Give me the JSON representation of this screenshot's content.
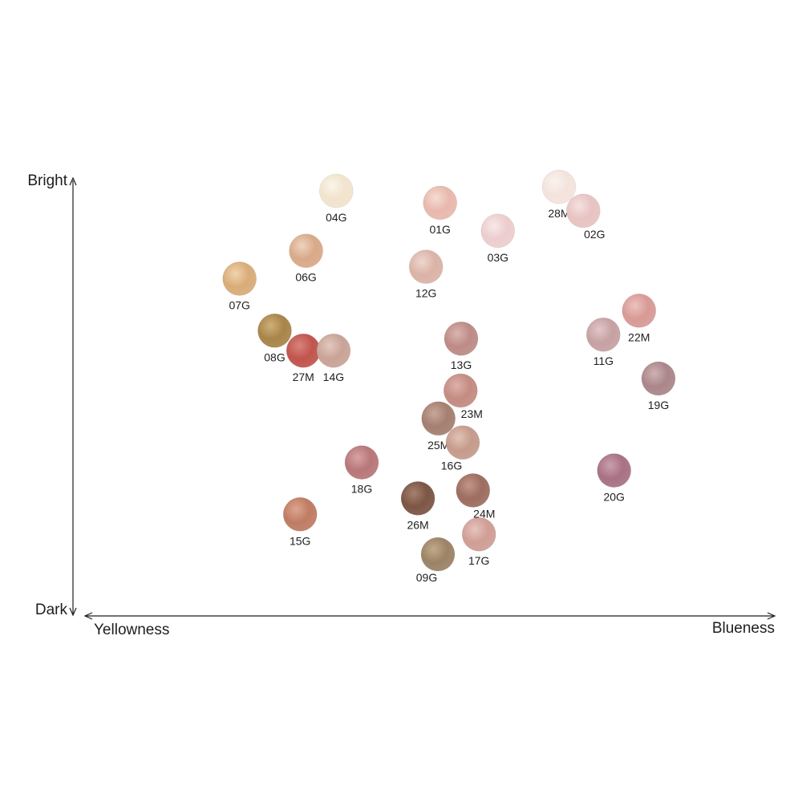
{
  "chart_data": {
    "type": "scatter",
    "xlabel_left": "Yellowness",
    "xlabel_right": "Blueness",
    "ylabel_top": "Bright",
    "ylabel_bottom": "Dark",
    "xlim": [
      0,
      100
    ],
    "ylim": [
      0,
      100
    ],
    "grid": false,
    "legend": "none",
    "points": [
      {
        "label": "04G",
        "x": 31.5,
        "y": 98,
        "color": "#f1e3cd",
        "hi": "#fbf5ea",
        "label_pos": "below"
      },
      {
        "label": "01G",
        "x": 50.7,
        "y": 95,
        "color": "#e8b8ae",
        "hi": "#f6dcd4",
        "label_pos": "below"
      },
      {
        "label": "28M",
        "x": 72.7,
        "y": 99,
        "color": "#f3e3dc",
        "hi": "#fbf2ee",
        "label_pos": "below"
      },
      {
        "label": "02G",
        "x": 77.2,
        "y": 93,
        "color": "#e7c3c1",
        "hi": "#f5e1e0",
        "label_pos": "below-right"
      },
      {
        "label": "03G",
        "x": 61.4,
        "y": 88,
        "color": "#eccdcd",
        "hi": "#f8e8e8",
        "label_pos": "below"
      },
      {
        "label": "06G",
        "x": 25.9,
        "y": 83,
        "color": "#d9a989",
        "hi": "#efd3bf",
        "label_pos": "below"
      },
      {
        "label": "12G",
        "x": 48.1,
        "y": 79,
        "color": "#dbb3a7",
        "hi": "#eed7cf",
        "label_pos": "below"
      },
      {
        "label": "07G",
        "x": 13.6,
        "y": 76,
        "color": "#d9ac79",
        "hi": "#f0d3ae",
        "label_pos": "below"
      },
      {
        "label": "08G",
        "x": 20.1,
        "y": 63,
        "color": "#a88549",
        "hi": "#cfb07a",
        "label_pos": "below"
      },
      {
        "label": "27M",
        "x": 25.4,
        "y": 58,
        "color": "#c1554e",
        "hi": "#d8847c",
        "label_pos": "below"
      },
      {
        "label": "14G",
        "x": 31.0,
        "y": 58,
        "color": "#c9a397",
        "hi": "#e3c8bf",
        "label_pos": "below"
      },
      {
        "label": "13G",
        "x": 54.6,
        "y": 61,
        "color": "#bd8b87",
        "hi": "#dab5b0",
        "label_pos": "below"
      },
      {
        "label": "11G",
        "x": 80.9,
        "y": 62,
        "color": "#c6a1a3",
        "hi": "#e2c7c8",
        "label_pos": "below"
      },
      {
        "label": "22M",
        "x": 87.5,
        "y": 68,
        "color": "#d89a96",
        "hi": "#ecc2bf",
        "label_pos": "below"
      },
      {
        "label": "19G",
        "x": 91.1,
        "y": 51,
        "color": "#aa868a",
        "hi": "#cfb2b5",
        "label_pos": "below"
      },
      {
        "label": "23M",
        "x": 54.5,
        "y": 48,
        "color": "#c38c82",
        "hi": "#dcb1a9",
        "label_pos": "below-right"
      },
      {
        "label": "25M",
        "x": 50.4,
        "y": 41,
        "color": "#a57f71",
        "hi": "#c7a699",
        "label_pos": "below"
      },
      {
        "label": "16G",
        "x": 54.9,
        "y": 35,
        "color": "#c59b8b",
        "hi": "#e1c2b5",
        "label_pos": "below-left"
      },
      {
        "label": "18G",
        "x": 36.2,
        "y": 30,
        "color": "#b87779",
        "hi": "#d7a3a4",
        "label_pos": "below"
      },
      {
        "label": "24M",
        "x": 56.8,
        "y": 23,
        "color": "#9d6e60",
        "hi": "#c0968a",
        "label_pos": "below-right"
      },
      {
        "label": "26M",
        "x": 46.6,
        "y": 21,
        "color": "#7d5646",
        "hi": "#a6806f",
        "label_pos": "below"
      },
      {
        "label": "20G",
        "x": 82.9,
        "y": 28,
        "color": "#a87284",
        "hi": "#cb9fad",
        "label_pos": "below"
      },
      {
        "label": "15G",
        "x": 24.8,
        "y": 17,
        "color": "#bf7c64",
        "hi": "#dca58f",
        "label_pos": "below"
      },
      {
        "label": "17G",
        "x": 57.9,
        "y": 12,
        "color": "#cf9e95",
        "hi": "#e6c4bd",
        "label_pos": "below"
      },
      {
        "label": "09G",
        "x": 50.3,
        "y": 7,
        "color": "#9c8366",
        "hi": "#c1a98c",
        "label_pos": "below-left"
      }
    ]
  }
}
